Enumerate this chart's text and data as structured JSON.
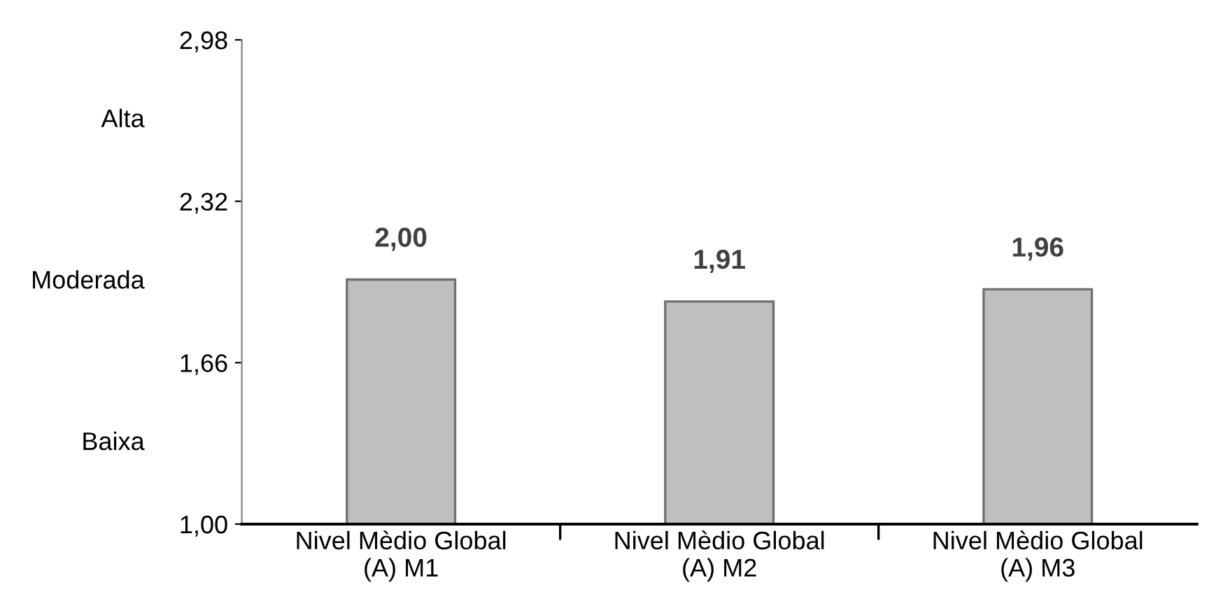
{
  "chart_data": {
    "type": "bar",
    "categories": [
      "Nivel Mèdio Global\n(A) M1",
      "Nivel Mèdio Global\n(A) M2",
      "Nivel Mèdio Global\n(A) M3"
    ],
    "values": [
      2.0,
      1.91,
      1.96
    ],
    "color": "#bfbfbf",
    "value_labels": [
      "2,00",
      "1,91",
      "1,96"
    ],
    "ylim": [
      1.0,
      2.98
    ],
    "yticks": [
      {
        "value": 1.0,
        "label": "1,00"
      },
      {
        "value": 1.66,
        "label": "1,66"
      },
      {
        "value": 2.32,
        "label": "2,32"
      },
      {
        "value": 2.98,
        "label": "2,98"
      }
    ],
    "annotations": [
      "Alta",
      "Moderada",
      "Baixa"
    ],
    "grid": false,
    "legend": false
  }
}
